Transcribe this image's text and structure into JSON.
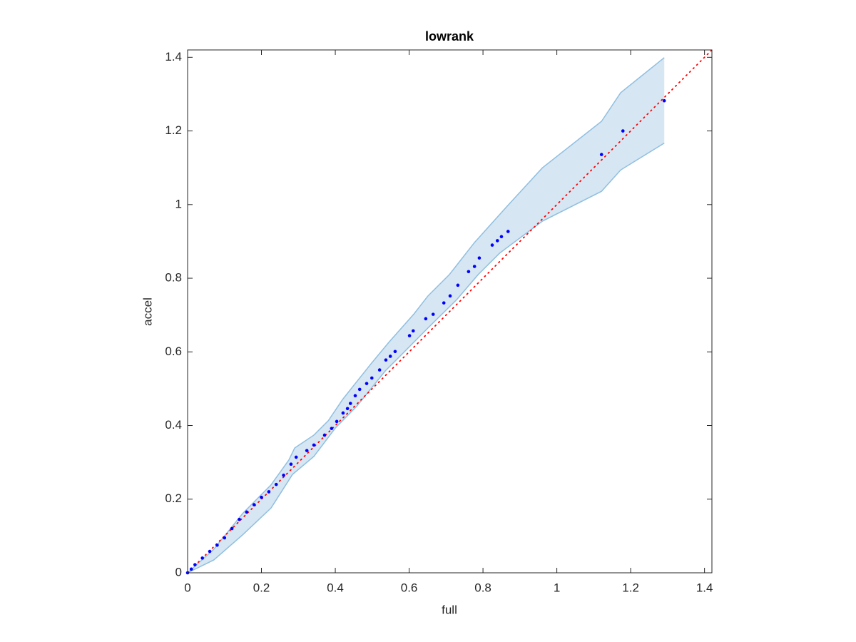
{
  "chart_data": {
    "type": "scatter",
    "title": "lowrank",
    "x_label": "full",
    "y_label": "accel",
    "xlim": [
      0,
      1.42
    ],
    "ylim": [
      0,
      1.42
    ],
    "xticks": [
      0,
      0.2,
      0.4,
      0.6,
      0.8,
      1,
      1.2,
      1.4
    ],
    "yticks": [
      0,
      0.2,
      0.4,
      0.6,
      0.8,
      1,
      1.2,
      1.4
    ],
    "grid": false,
    "series": [
      {
        "color": "#0000ff",
        "x": [
          0,
          0.01,
          0.02,
          0.04,
          0.06,
          0.08,
          0.1,
          0.12,
          0.14,
          0.16,
          0.18,
          0.2,
          0.22,
          0.24,
          0.26,
          0.28,
          0.294,
          0.323,
          0.342,
          0.371,
          0.39,
          0.404,
          0.421,
          0.433,
          0.441,
          0.454,
          0.466,
          0.485,
          0.499,
          0.52,
          0.537,
          0.549,
          0.562,
          0.601,
          0.611,
          0.645,
          0.665,
          0.694,
          0.711,
          0.732,
          0.761,
          0.777,
          0.79,
          0.825,
          0.839,
          0.85,
          0.868,
          1.121,
          1.179,
          1.291
        ],
        "values": [
          0,
          0.01,
          0.022,
          0.04,
          0.058,
          0.075,
          0.095,
          0.12,
          0.145,
          0.165,
          0.185,
          0.205,
          0.22,
          0.24,
          0.265,
          0.295,
          0.314,
          0.332,
          0.347,
          0.374,
          0.392,
          0.411,
          0.434,
          0.446,
          0.46,
          0.481,
          0.498,
          0.514,
          0.529,
          0.551,
          0.578,
          0.588,
          0.601,
          0.644,
          0.657,
          0.69,
          0.702,
          0.733,
          0.752,
          0.781,
          0.818,
          0.832,
          0.855,
          0.89,
          0.902,
          0.913,
          0.927,
          1.136,
          1.2,
          1.282
        ]
      }
    ],
    "band": {
      "color": "#d6e6f3",
      "edge_color": "#8fbfe0",
      "upper": {
        "x": [
          0,
          0.071,
          0.149,
          0.226,
          0.274,
          0.29,
          0.342,
          0.381,
          0.42,
          0.458,
          0.497,
          0.545,
          0.613,
          0.651,
          0.709,
          0.777,
          0.864,
          0.961,
          1.121,
          1.173,
          1.291
        ],
        "y": [
          0,
          0.064,
          0.161,
          0.239,
          0.306,
          0.339,
          0.374,
          0.413,
          0.471,
          0.519,
          0.568,
          0.626,
          0.703,
          0.752,
          0.81,
          0.897,
          0.994,
          1.1,
          1.226,
          1.304,
          1.399
        ]
      },
      "lower": {
        "x": [
          0,
          0.071,
          0.149,
          0.226,
          0.284,
          0.342,
          0.4,
          0.458,
          0.536,
          0.574,
          0.651,
          0.729,
          0.787,
          0.845,
          0.961,
          1.121,
          1.173,
          1.291
        ],
        "y": [
          0,
          0.035,
          0.103,
          0.176,
          0.267,
          0.316,
          0.393,
          0.452,
          0.549,
          0.587,
          0.665,
          0.742,
          0.81,
          0.868,
          0.955,
          1.036,
          1.094,
          1.167
        ]
      }
    },
    "reference_line": {
      "color": "#ff0000",
      "x": [
        0,
        1.42
      ],
      "y": [
        0,
        1.42
      ]
    }
  }
}
